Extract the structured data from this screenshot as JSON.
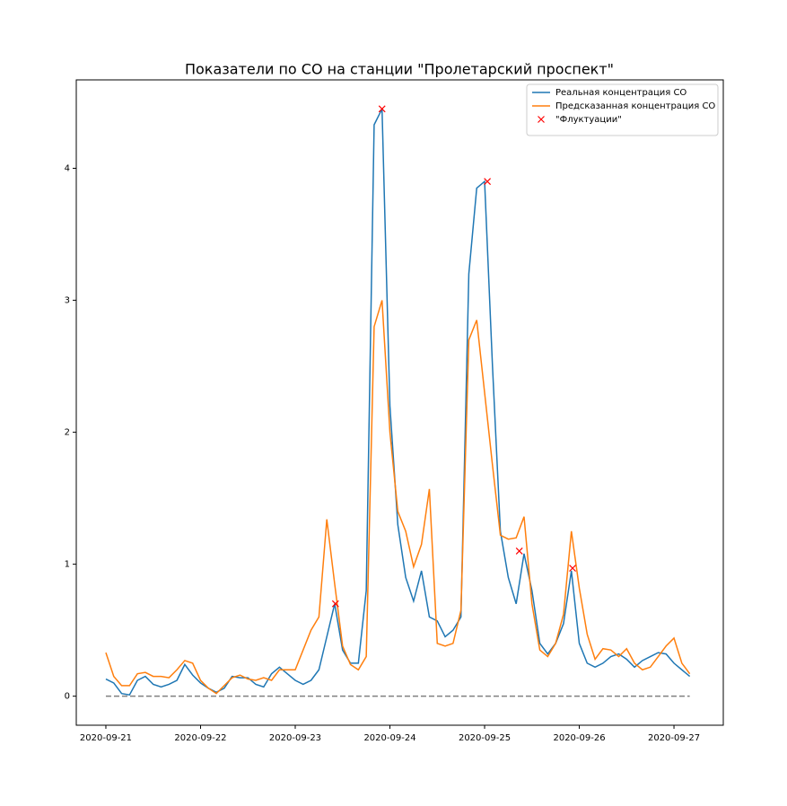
{
  "chart_data": {
    "type": "line",
    "title": "Показатели по CO на станции \"Пролетарский проспект\"",
    "x": [
      0,
      2,
      4,
      6,
      8,
      10,
      12,
      14,
      16,
      18,
      20,
      22,
      24,
      26,
      28,
      30,
      32,
      34,
      36,
      38,
      40,
      42,
      44,
      46,
      48,
      50,
      52,
      54,
      56,
      58,
      60,
      62,
      64,
      66,
      68,
      70,
      72,
      74,
      76,
      78,
      80,
      82,
      84,
      86,
      88,
      90,
      92,
      94,
      96,
      98,
      100,
      102,
      104,
      106,
      108,
      110,
      112,
      114,
      116,
      118,
      120,
      122,
      124,
      126,
      128,
      130,
      132,
      134,
      136,
      138,
      140,
      142,
      144,
      146,
      148
    ],
    "xlim": [
      -7.5,
      156.5
    ],
    "xticks": [
      {
        "value": 0,
        "label": "2020-09-21"
      },
      {
        "value": 24,
        "label": "2020-09-22"
      },
      {
        "value": 48,
        "label": "2020-09-23"
      },
      {
        "value": 72,
        "label": "2020-09-24"
      },
      {
        "value": 96,
        "label": "2020-09-25"
      },
      {
        "value": 120,
        "label": "2020-09-26"
      },
      {
        "value": 144,
        "label": "2020-09-27"
      }
    ],
    "ylim": [
      -0.22,
      4.67
    ],
    "yticks": [
      0,
      1,
      2,
      3,
      4
    ],
    "baseline": 0,
    "legend": "upper right",
    "series": [
      {
        "name": "Реальная концентрация CO",
        "color": "#1f77b4",
        "style": "line",
        "values": [
          0.13,
          0.1,
          0.02,
          0.01,
          0.12,
          0.15,
          0.09,
          0.07,
          0.09,
          0.12,
          0.24,
          0.16,
          0.1,
          0.06,
          0.03,
          0.06,
          0.15,
          0.14,
          0.14,
          0.09,
          0.07,
          0.17,
          0.22,
          0.17,
          0.12,
          0.09,
          0.12,
          0.2,
          0.45,
          0.7,
          0.35,
          0.25,
          0.25,
          0.8,
          4.33,
          4.45,
          2.2,
          1.3,
          0.9,
          0.72,
          0.95,
          0.6,
          0.57,
          0.45,
          0.5,
          0.6,
          3.2,
          3.85,
          3.9,
          2.5,
          1.25,
          0.9,
          0.7,
          1.08,
          0.8,
          0.4,
          0.32,
          0.4,
          0.55,
          0.95,
          0.4,
          0.25,
          0.22,
          0.25,
          0.3,
          0.32,
          0.28,
          0.22,
          0.27,
          0.3,
          0.33,
          0.32,
          0.25,
          0.2,
          0.15
        ]
      },
      {
        "name": "Предсказанная концентрация CO",
        "color": "#ff7f0e",
        "style": "line",
        "values": [
          0.33,
          0.15,
          0.08,
          0.08,
          0.17,
          0.18,
          0.15,
          0.15,
          0.14,
          0.2,
          0.27,
          0.25,
          0.12,
          0.06,
          0.02,
          0.08,
          0.14,
          0.16,
          0.13,
          0.12,
          0.14,
          0.12,
          0.2,
          0.2,
          0.2,
          0.35,
          0.5,
          0.6,
          1.34,
          0.85,
          0.38,
          0.24,
          0.2,
          0.3,
          2.8,
          3.0,
          2.0,
          1.4,
          1.25,
          0.98,
          1.15,
          1.57,
          0.4,
          0.38,
          0.4,
          0.65,
          2.7,
          2.85,
          2.3,
          1.75,
          1.22,
          1.19,
          1.2,
          1.36,
          0.7,
          0.35,
          0.3,
          0.4,
          0.62,
          1.25,
          0.82,
          0.47,
          0.28,
          0.36,
          0.35,
          0.3,
          0.36,
          0.25,
          0.2,
          0.22,
          0.3,
          0.38,
          0.44,
          0.25,
          0.17
        ]
      },
      {
        "name": "\"Флуктуации\"",
        "color": "#ff0000",
        "style": "x",
        "x": [
          58.2,
          70,
          96.7,
          104.8,
          118.3
        ],
        "values": [
          0.7,
          4.45,
          3.9,
          1.1,
          0.97
        ]
      }
    ]
  }
}
